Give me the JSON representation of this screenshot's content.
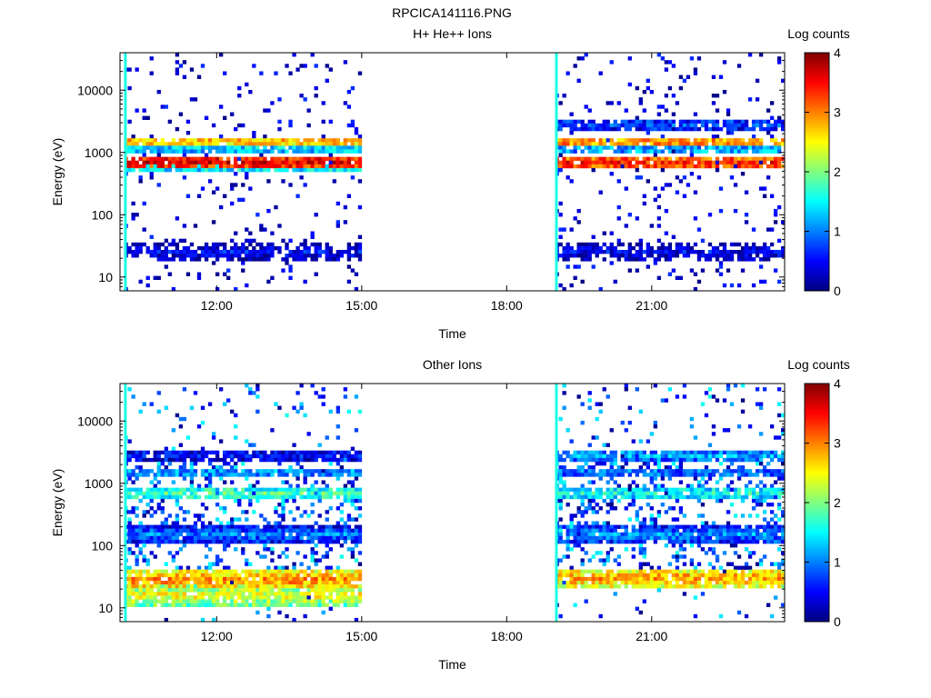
{
  "figure_title": "RPCICA141116.PNG",
  "chart_data": [
    {
      "type": "heatmap",
      "title": "H+ He++ Ions",
      "xlabel": "Time",
      "ylabel": "Energy (eV)",
      "x_range": [
        "10:00",
        "23:45"
      ],
      "y_range": [
        6,
        40000
      ],
      "y_scale": "log",
      "x_ticks": [
        "12:00",
        "15:00",
        "18:00",
        "21:00"
      ],
      "y_ticks": [
        "10",
        "100",
        "1000",
        "10000"
      ],
      "colorbar": {
        "label": "Log counts",
        "range": [
          0,
          4
        ],
        "ticks": [
          "0",
          "1",
          "2",
          "3",
          "4"
        ]
      },
      "data_gaps": [
        [
          "15:00",
          "19:00"
        ]
      ],
      "series": [
        {
          "segment": "first",
          "time_range": [
            "10:05",
            "15:00"
          ],
          "bands": [
            {
              "energy_eV": 700,
              "log_counts": 3.6
            },
            {
              "energy_eV": 1500,
              "log_counts": 2.8
            },
            {
              "energy_eV": 1150,
              "log_counts": 1.4
            },
            {
              "energy_eV": 550,
              "log_counts": 1.5
            },
            {
              "energy_eV": 25,
              "log_counts": 0.5
            }
          ]
        },
        {
          "segment": "second",
          "time_range": [
            "19:00",
            "23:45"
          ],
          "bands": [
            {
              "energy_eV": 680,
              "log_counts": 3.4
            },
            {
              "energy_eV": 1450,
              "log_counts": 3.0
            },
            {
              "energy_eV": 2800,
              "log_counts": 0.8
            },
            {
              "energy_eV": 1100,
              "log_counts": 1.3
            },
            {
              "energy_eV": 25,
              "log_counts": 0.5
            }
          ]
        }
      ]
    },
    {
      "type": "heatmap",
      "title": "Other Ions",
      "xlabel": "Time",
      "ylabel": "Energy (eV)",
      "x_range": [
        "10:00",
        "23:45"
      ],
      "y_range": [
        6,
        40000
      ],
      "y_scale": "log",
      "x_ticks": [
        "12:00",
        "15:00",
        "18:00",
        "21:00"
      ],
      "y_ticks": [
        "10",
        "100",
        "1000",
        "10000"
      ],
      "colorbar": {
        "label": "Log counts",
        "range": [
          0,
          4
        ],
        "ticks": [
          "0",
          "1",
          "2",
          "3",
          "4"
        ]
      },
      "data_gaps": [
        [
          "15:00",
          "19:00"
        ]
      ],
      "series": [
        {
          "segment": "first",
          "time_range": [
            "10:05",
            "15:00"
          ],
          "bands": [
            {
              "energy_eV": 28,
              "log_counts": 3.0
            },
            {
              "energy_eV": 16,
              "log_counts": 2.5
            },
            {
              "energy_eV": 700,
              "log_counts": 1.8
            },
            {
              "energy_eV": 1500,
              "log_counts": 1.2
            },
            {
              "energy_eV": 2800,
              "log_counts": 0.6
            },
            {
              "energy_eV": 150,
              "log_counts": 1.0
            }
          ]
        },
        {
          "segment": "second",
          "time_range": [
            "19:00",
            "23:45"
          ],
          "bands": [
            {
              "energy_eV": 30,
              "log_counts": 2.9
            },
            {
              "energy_eV": 2800,
              "log_counts": 1.2
            },
            {
              "energy_eV": 700,
              "log_counts": 1.6
            },
            {
              "energy_eV": 1500,
              "log_counts": 1.0
            },
            {
              "energy_eV": 150,
              "log_counts": 1.1
            }
          ]
        }
      ]
    }
  ]
}
